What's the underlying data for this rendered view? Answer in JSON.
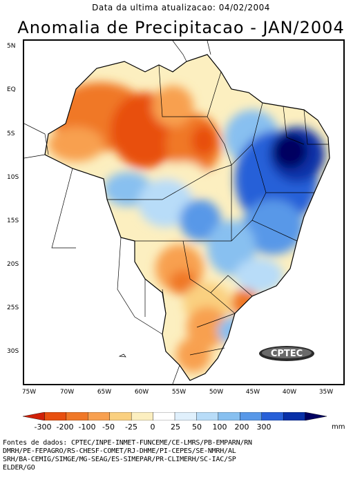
{
  "header": {
    "update_line": "Data da ultima atualizacao: 04/02/2004",
    "title": "Anomalia de Precipitacao - JAN/2004"
  },
  "axes": {
    "lat_labels": [
      "5N",
      "EQ",
      "5S",
      "10S",
      "15S",
      "20S",
      "25S",
      "30S"
    ],
    "lon_labels": [
      "75W",
      "70W",
      "65W",
      "60W",
      "55W",
      "50W",
      "45W",
      "40W",
      "35W"
    ]
  },
  "legend": {
    "ticks": [
      "-300",
      "-200",
      "-100",
      "-50",
      "-25",
      "0",
      "25",
      "50",
      "100",
      "200",
      "300"
    ],
    "unit": "mm",
    "colors": [
      "#d02008",
      "#e85010",
      "#f07828",
      "#f8a050",
      "#fad080",
      "#fcefc0",
      "#ffffff",
      "#e0f0fc",
      "#b8dcf8",
      "#88c0f0",
      "#5898e8",
      "#2860d8",
      "#0830a8",
      "#000060"
    ]
  },
  "logo": {
    "text": "CPTEC"
  },
  "sources": {
    "lines": [
      "Fontes de dados: CPTEC/INPE-INMET-FUNCEME/CE-LMRS/PB-EMPARN/RN",
      "DMRH/PE-FEPAGRO/RS-CHESF-COMET/RJ-DHME/PI-CEPES/SE-NMRH/AL",
      "SRH/BA-CEMIG/SIMGE/MG-SEAG/ES-SIMEPAR/PR-CLIMERH/SC-IAC/SP",
      "ELDER/GO"
    ]
  }
}
